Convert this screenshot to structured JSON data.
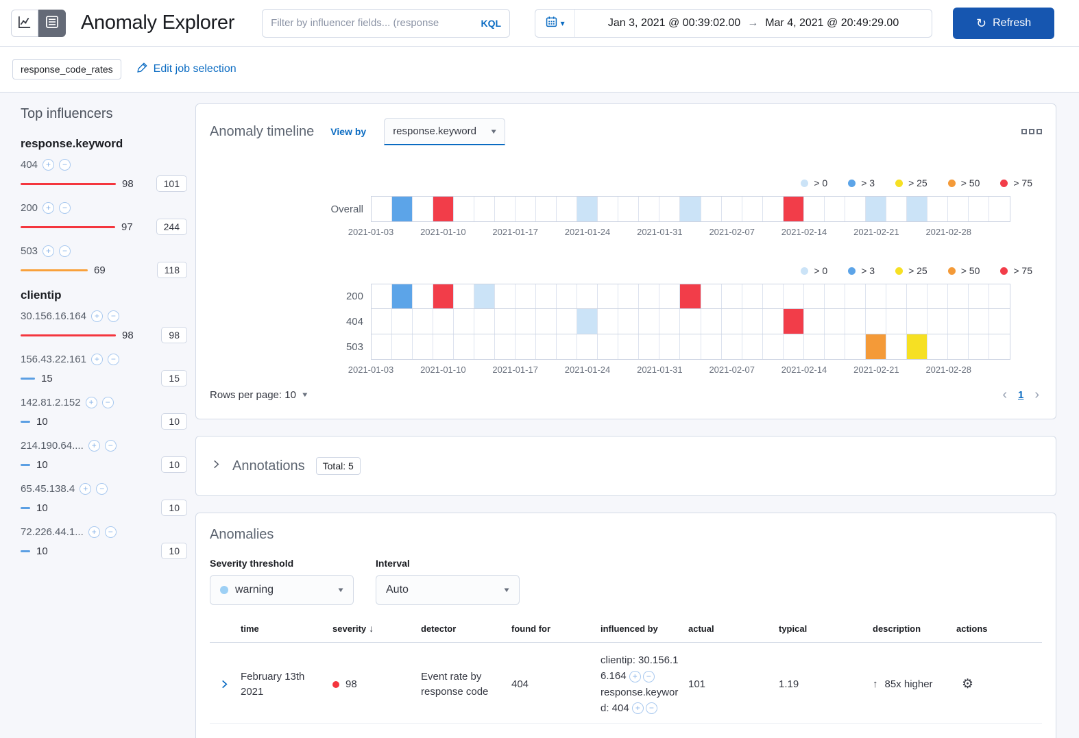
{
  "header": {
    "title": "Anomaly Explorer",
    "filter_placeholder": "Filter by influencer fields... (response",
    "kql_label": "KQL",
    "date_start": "Jan 3, 2021 @ 00:39:02.00",
    "date_separator": "→",
    "date_end": "Mar 4, 2021 @ 20:49:29.00",
    "refresh_label": "Refresh"
  },
  "job_bar": {
    "job_name": "response_code_rates",
    "edit_label": "Edit job selection"
  },
  "influencers": {
    "title": "Top influencers",
    "groups": [
      {
        "field": "response.keyword",
        "items": [
          {
            "name": "404",
            "value": 98,
            "badge": "101",
            "color": "#f4363e"
          },
          {
            "name": "200",
            "value": 97,
            "badge": "244",
            "color": "#f4363e"
          },
          {
            "name": "503",
            "value": 69,
            "badge": "118",
            "color": "#f9a13b"
          }
        ]
      },
      {
        "field": "clientip",
        "items": [
          {
            "name": "30.156.16.164",
            "value": 98,
            "badge": "98",
            "color": "#f4363e"
          },
          {
            "name": "156.43.22.161",
            "value": 15,
            "badge": "15",
            "color": "#5b9fe3"
          },
          {
            "name": "142.81.2.152",
            "value": 10,
            "badge": "10",
            "color": "#5b9fe3"
          },
          {
            "name": "214.190.64....",
            "value": 10,
            "badge": "10",
            "color": "#5b9fe3"
          },
          {
            "name": "65.45.138.4",
            "value": 10,
            "badge": "10",
            "color": "#5b9fe3"
          },
          {
            "name": "72.226.44.1...",
            "value": 10,
            "badge": "10",
            "color": "#5b9fe3"
          }
        ]
      }
    ]
  },
  "timeline": {
    "title": "Anomaly timeline",
    "view_by_label": "View by",
    "view_by_value": "response.keyword",
    "rows_per_page_label": "Rows per page: 10",
    "page": "1",
    "severity_colors": {
      "gt0": "#cbe3f7",
      "gt3": "#5ca4e8",
      "gt25": "#f6e023",
      "gt50": "#f49a38",
      "gt75": "#f23d49"
    },
    "legend": [
      {
        "label": "> 0",
        "key": "gt0"
      },
      {
        "label": "> 3",
        "key": "gt3"
      },
      {
        "label": "> 25",
        "key": "gt25"
      },
      {
        "label": "> 50",
        "key": "gt50"
      },
      {
        "label": "> 75",
        "key": "gt75"
      }
    ],
    "swimlanes": {
      "num_cells": 31,
      "axis_labels": [
        "2021-01-03",
        "2021-01-10",
        "2021-01-17",
        "2021-01-24",
        "2021-01-31",
        "2021-02-07",
        "2021-02-14",
        "2021-02-21",
        "2021-02-28"
      ],
      "overall": {
        "label": "Overall",
        "cells": {
          "1": "gt3",
          "3": "gt75",
          "10": "gt0",
          "15": "gt0",
          "20": "gt75",
          "24": "gt0",
          "26": "gt0"
        }
      },
      "view_by": [
        {
          "label": "200",
          "cells": {
            "1": "gt3",
            "3": "gt75",
            "5": "gt0",
            "15": "gt75"
          }
        },
        {
          "label": "404",
          "cells": {
            "10": "gt0",
            "20": "gt75"
          }
        },
        {
          "label": "503",
          "cells": {
            "24": "gt50",
            "26": "gt25"
          }
        }
      ]
    }
  },
  "annotations": {
    "title": "Annotations",
    "total_badge": "Total: 5"
  },
  "anomalies": {
    "title": "Anomalies",
    "severity_label": "Severity threshold",
    "severity_value": "warning",
    "severity_dot_color": "#9dd0f5",
    "interval_label": "Interval",
    "interval_value": "Auto",
    "table": {
      "columns": [
        "time",
        "severity",
        "detector",
        "found for",
        "influenced by",
        "actual",
        "typical",
        "description",
        "actions"
      ],
      "sorted_column": "severity",
      "rows": [
        {
          "time": "February 13th 2021",
          "severity": "98",
          "severity_color": "#f4353d",
          "detector": "Event rate by response code",
          "found_for": "404",
          "influencers": [
            "clientip: 30.156.16.164",
            "response.keyword: 404"
          ],
          "actual": "101",
          "typical": "1.19",
          "description": "85x higher",
          "description_direction": "up"
        }
      ]
    }
  }
}
